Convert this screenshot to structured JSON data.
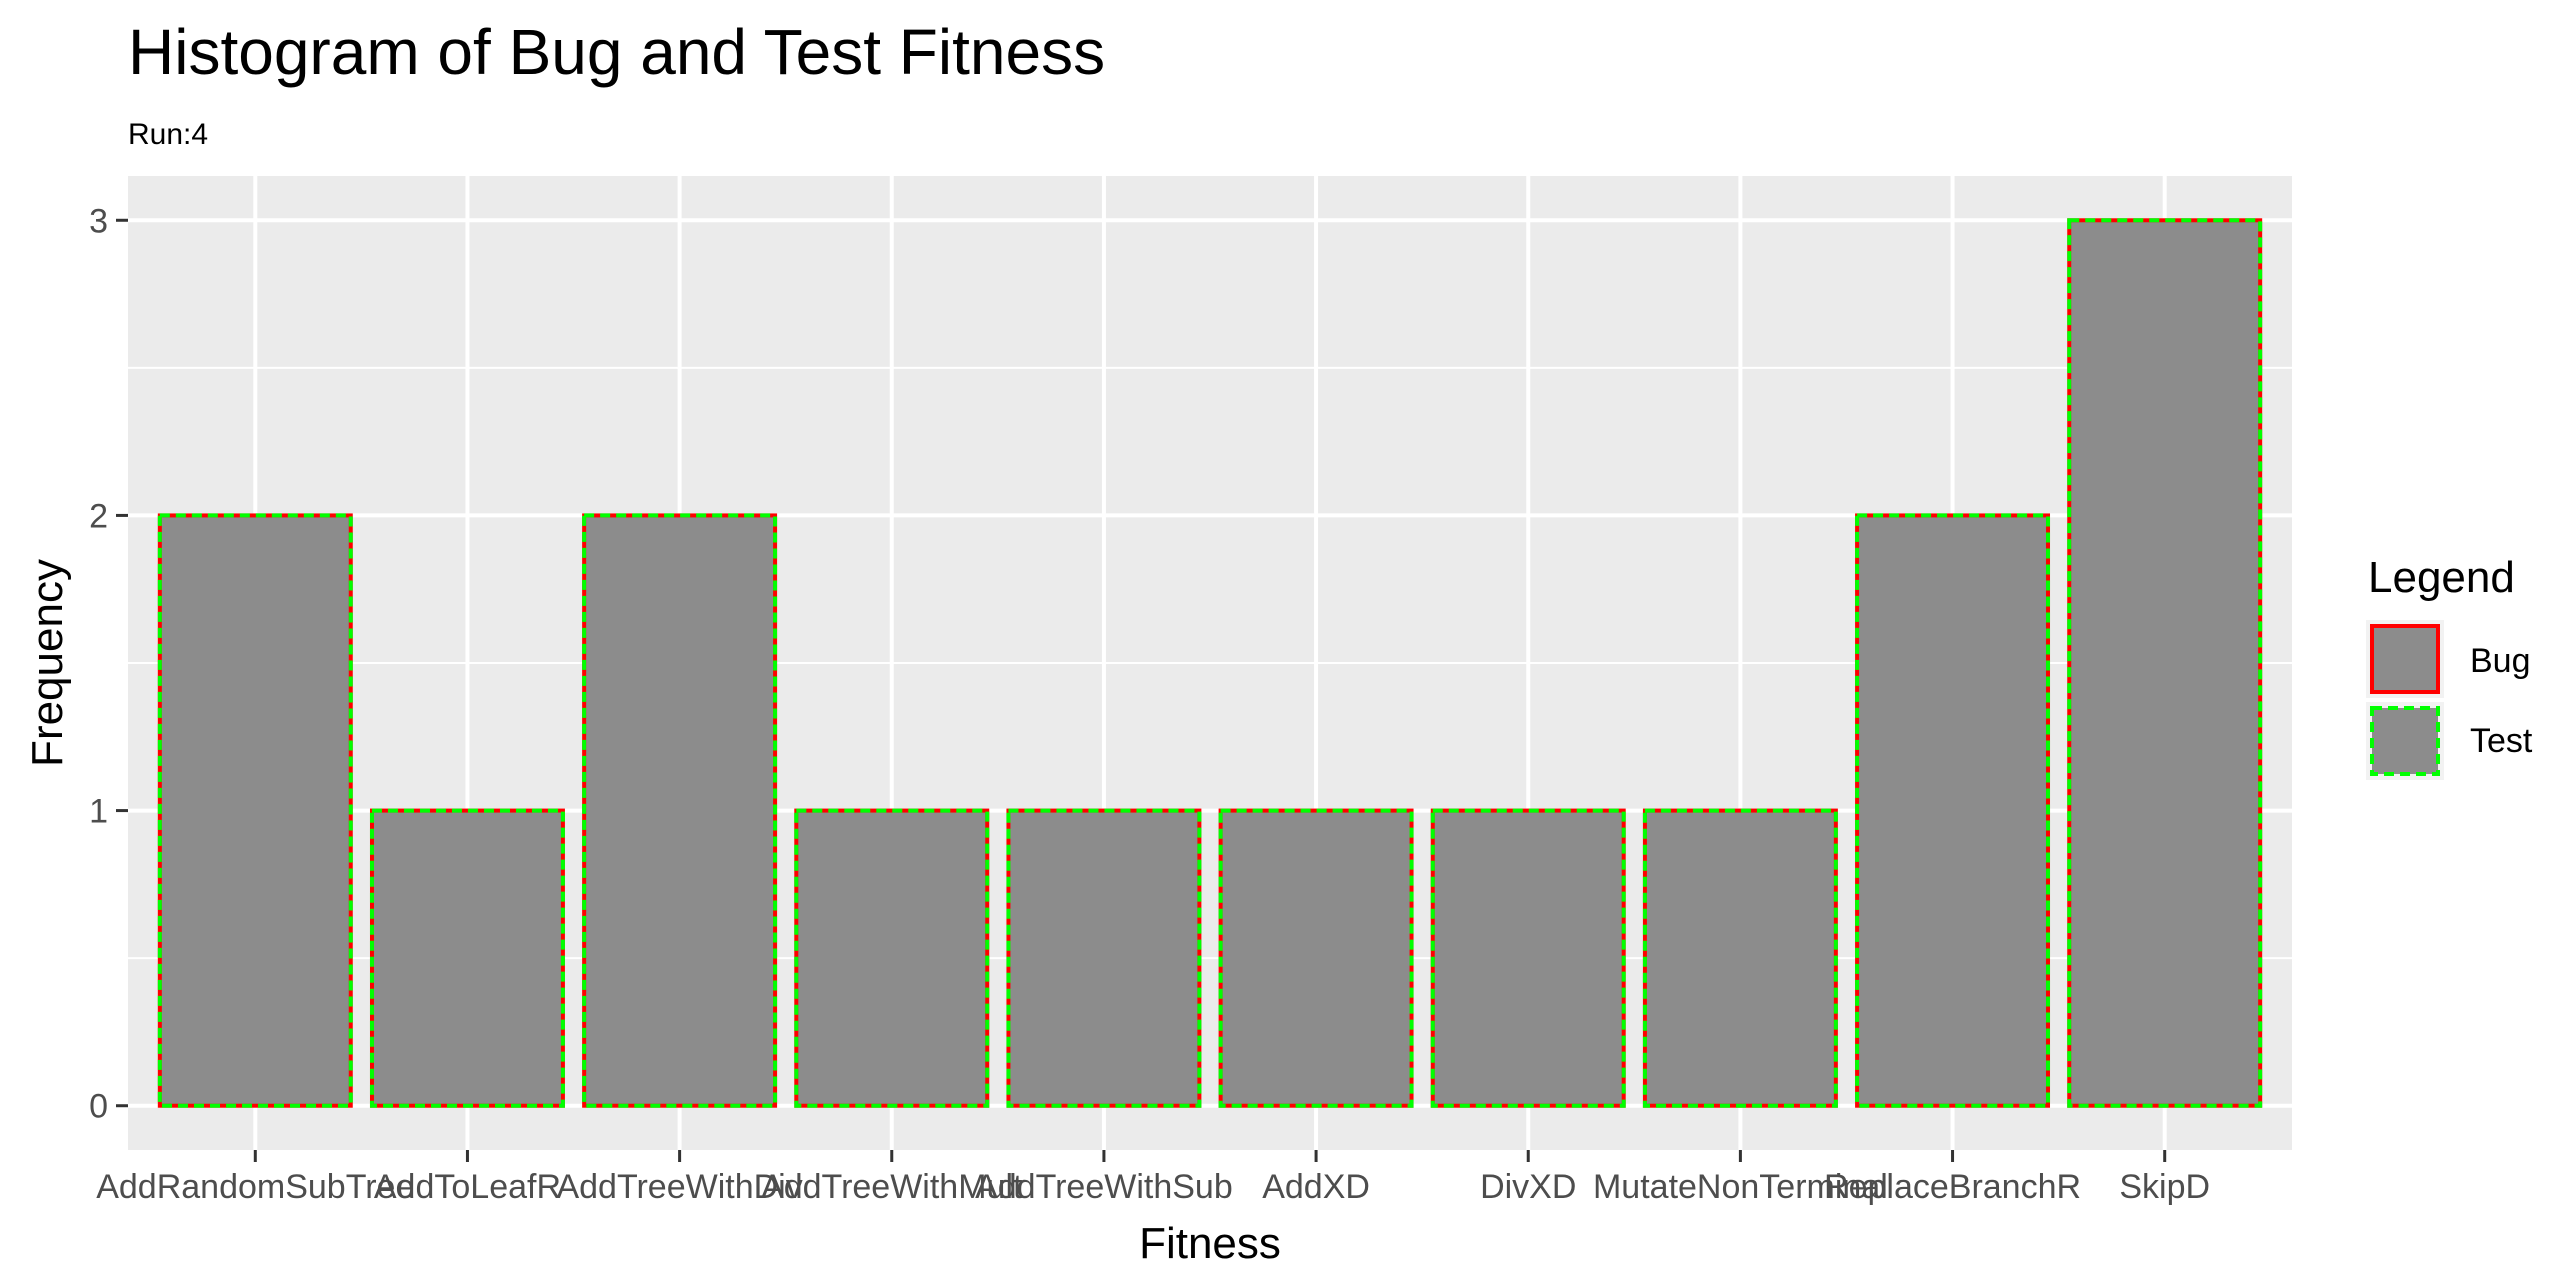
{
  "chart_data": {
    "type": "bar",
    "title": "Histogram of Bug and Test Fitness",
    "subtitle": "Run:4",
    "xlabel": "Fitness",
    "ylabel": "Frequency",
    "categories": [
      "AddRandomSubTree",
      "AddToLeaf",
      "AddTreeWithDiv",
      "AddTreeWithMult",
      "AddTreeWithSub",
      "AddXD",
      "DivXD",
      "MutateNonTerminal",
      "ReplaceBranch",
      "SkipD"
    ],
    "category_labels": [
      "AddRandomSubTree",
      "AddToLeafR",
      "AddTreeWithDiv",
      "AddTreeWithMult",
      "AddTreeWithSub",
      "AddXD",
      "DivXD",
      "MutateNonTerminal",
      "ReplaceBranchR",
      "SkipD"
    ],
    "series": [
      {
        "name": "Bug",
        "values": [
          2,
          1,
          2,
          1,
          1,
          1,
          1,
          1,
          2,
          3
        ]
      },
      {
        "name": "Test",
        "values": [
          2,
          1,
          2,
          1,
          1,
          1,
          1,
          1,
          2,
          3
        ]
      }
    ],
    "ylim": [
      -0.15,
      3.15
    ],
    "yticks": [
      "0",
      "1",
      "2",
      "3"
    ],
    "grid": true,
    "legend": {
      "title": "Legend",
      "position": "right",
      "entries": [
        {
          "name": "Bug",
          "outline": "#ff0000",
          "style": "solid"
        },
        {
          "name": "Test",
          "outline": "#00ff00",
          "style": "dashed"
        }
      ]
    },
    "colors": {
      "bar_fill": "#8c8c8c",
      "panel": "#ebebeb",
      "grid": "#ffffff",
      "bug_outline": "#ff0000",
      "test_outline": "#00ff00"
    }
  }
}
